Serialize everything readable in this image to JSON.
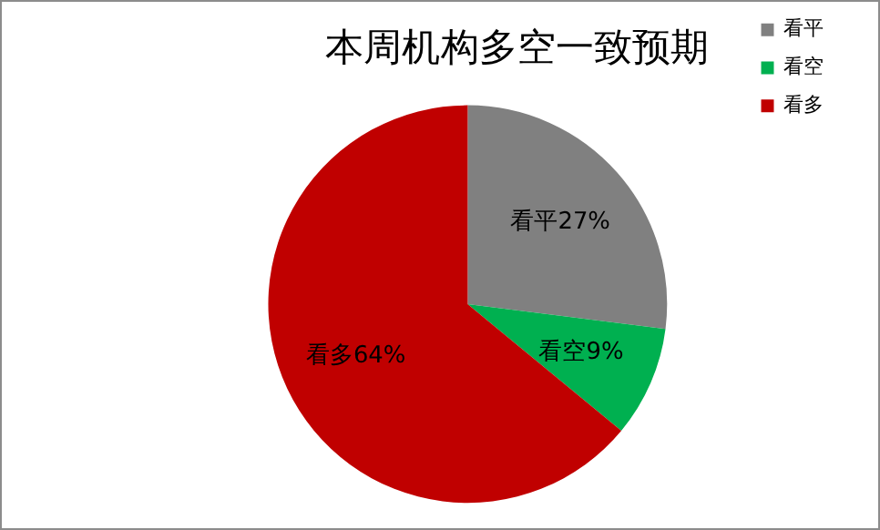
{
  "chart_data": {
    "type": "pie",
    "title": "本周机构多空一致预期",
    "categories": [
      "看平",
      "看空",
      "看多"
    ],
    "values": [
      27,
      9,
      64
    ],
    "colors": [
      "#808080",
      "#00b050",
      "#c00000"
    ],
    "value_labels": [
      "看平27%",
      "看空9%",
      "看多64%"
    ],
    "legend": "right"
  }
}
